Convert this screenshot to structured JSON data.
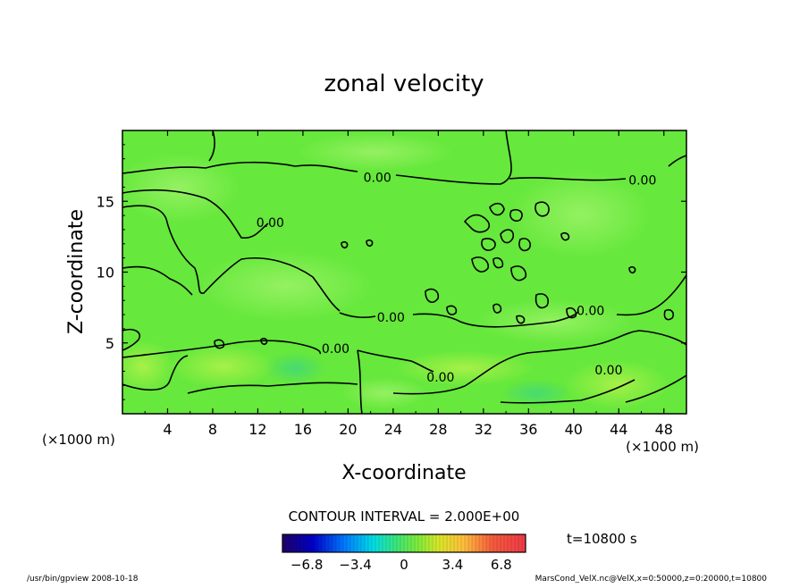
{
  "chart_data": {
    "type": "contour",
    "title": "zonal velocity",
    "xlabel": "X-coordinate",
    "ylabel": "Z-coordinate",
    "x_unit": "(×1000 m)",
    "y_unit": "(×1000 m)",
    "xlim": [
      0,
      50
    ],
    "ylim": [
      0,
      20
    ],
    "x_ticks": [
      "4",
      "8",
      "12",
      "16",
      "20",
      "24",
      "28",
      "32",
      "36",
      "40",
      "44",
      "48"
    ],
    "x_tick_values": [
      4,
      8,
      12,
      16,
      20,
      24,
      28,
      32,
      36,
      40,
      44,
      48
    ],
    "y_ticks": [
      "5",
      "10",
      "15"
    ],
    "y_tick_values": [
      5,
      10,
      15
    ],
    "contour_level_labels": [
      {
        "text": "0.00",
        "x": 22.6,
        "y": 16.7
      },
      {
        "text": "0.00",
        "x": 46.1,
        "y": 16.5
      },
      {
        "text": "0.00",
        "x": 13.1,
        "y": 13.5
      },
      {
        "text": "0.00",
        "x": 23.8,
        "y": 6.8
      },
      {
        "text": "0.00",
        "x": 41.5,
        "y": 7.3
      },
      {
        "text": "0.00",
        "x": 18.9,
        "y": 4.6
      },
      {
        "text": "0.00",
        "x": 28.2,
        "y": 2.6
      },
      {
        "text": "0.00",
        "x": 43.1,
        "y": 3.1
      }
    ],
    "contour_interval_text": "CONTOUR INTERVAL = 2.000E+00",
    "colorbar": {
      "tick_labels": [
        "−6.8",
        "−3.4",
        "0",
        "3.4",
        "6.8"
      ],
      "tick_values": [
        -6.8,
        -3.4,
        0,
        3.4,
        6.8
      ],
      "range": [
        -8.5,
        8.5
      ]
    },
    "time_label": "t=10800 s",
    "colors": {
      "field_base": "#66e83c",
      "field_light": "#8ef05a",
      "field_cyan": "#44dd66",
      "contour": "#000000"
    }
  },
  "footer": {
    "left": "/usr/bin/gpview   2008-10-18",
    "right": "MarsCond_VelX.nc@VelX,x=0:50000,z=0:20000,t=10800"
  }
}
